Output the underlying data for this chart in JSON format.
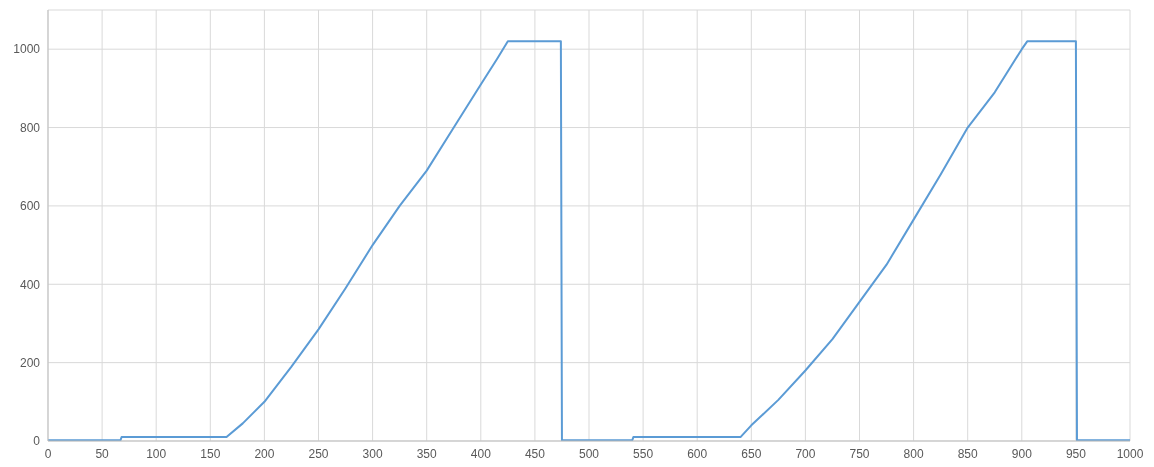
{
  "chart_data": {
    "type": "line",
    "x": [
      0,
      30,
      67,
      68,
      100,
      165,
      180,
      200,
      225,
      250,
      275,
      300,
      325,
      350,
      375,
      400,
      415,
      425,
      474,
      475,
      500,
      540,
      541,
      600,
      640,
      650,
      675,
      700,
      725,
      750,
      775,
      800,
      825,
      850,
      875,
      900,
      905,
      950,
      951,
      1000
    ],
    "series": [
      {
        "color": "#5b9bd5",
        "values": [
          2,
          2,
          2,
          10,
          10,
          10,
          45,
          100,
          190,
          285,
          390,
          500,
          600,
          690,
          800,
          910,
          975,
          1020,
          1020,
          2,
          2,
          2,
          10,
          10,
          10,
          40,
          105,
          180,
          260,
          355,
          450,
          565,
          680,
          800,
          890,
          1000,
          1020,
          1020,
          2,
          2
        ]
      }
    ],
    "xlim": [
      0,
      1000
    ],
    "xticks": [
      0,
      50,
      100,
      150,
      200,
      250,
      300,
      350,
      400,
      450,
      500,
      550,
      600,
      650,
      700,
      750,
      800,
      850,
      900,
      950,
      1000
    ],
    "ylim": [
      0,
      1100
    ],
    "yticks": [
      0,
      200,
      400,
      600,
      800,
      1000
    ],
    "grid": true,
    "legend": false,
    "marker": "none",
    "line_style": "solid"
  }
}
